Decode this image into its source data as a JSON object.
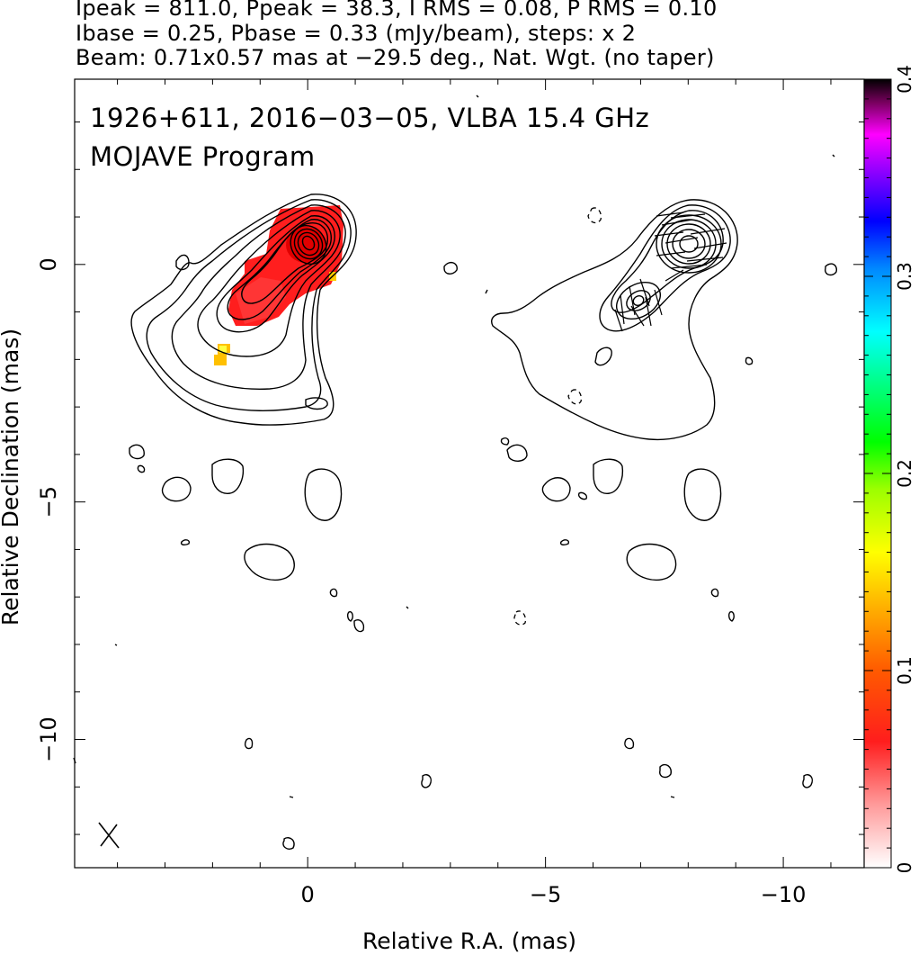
{
  "header": {
    "line1": "Ipeak = 811.0, Ppeak = 38.3, I RMS = 0.08, P RMS = 0.10",
    "line2": "Ibase = 0.25, Pbase = 0.33 (mJy/beam), steps: x 2",
    "line3": "Beam: 0.71x0.57 mas at −29.5 deg., Nat. Wgt. (no taper)"
  },
  "chart_data": {
    "type": "heatmap",
    "title_line1": "1926+611, 2016−03−05, VLBA 15.4 GHz",
    "title_line2": "MOJAVE Program",
    "xlabel": "Relative R.A. (mas)",
    "ylabel": "Relative Declination (mas)",
    "xlim": [
      4.9,
      -11.7
    ],
    "ylim": [
      -12.7,
      3.9
    ],
    "x_ticks": [
      0,
      -5,
      -10
    ],
    "y_ticks": [
      0,
      -5,
      -10
    ],
    "x_tick_labels": [
      "0",
      "−5",
      "−10"
    ],
    "y_tick_labels": [
      "0",
      "−5",
      "−10"
    ],
    "colorbar": {
      "min": 0,
      "max": 0.4,
      "ticks": [
        0,
        0.1,
        0.2,
        0.3,
        0.4
      ],
      "tick_labels": [
        "0",
        "0.1",
        "0.2",
        "0.3",
        "0.4"
      ]
    },
    "panels": [
      "total intensity with fractional polarization color",
      "total intensity contours with EVPA sticks"
    ],
    "core_position": [
      0,
      0
    ],
    "second_panel_core_offset_ra": -8.0
  }
}
